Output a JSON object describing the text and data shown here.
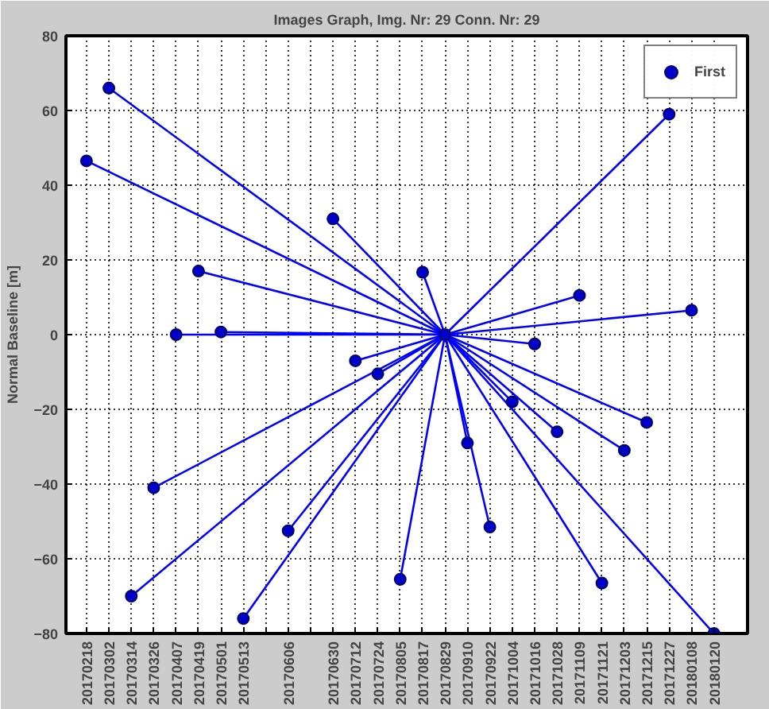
{
  "chart_data": {
    "type": "scatter",
    "title": "Images Graph, Img. Nr: 29 Conn. Nr: 29",
    "ylabel": "Normal Baseline [m]",
    "xlim": [
      "2017-02-07",
      "2018-02-07"
    ],
    "ylim": [
      -80,
      80
    ],
    "yticks": [
      -80,
      -60,
      -40,
      -20,
      0,
      20,
      40,
      60,
      80
    ],
    "xticks": [
      {
        "value": "2017-02-18",
        "label": "20170218"
      },
      {
        "value": "2017-03-02",
        "label": "20170302"
      },
      {
        "value": "2017-03-14",
        "label": "20170314"
      },
      {
        "value": "2017-03-26",
        "label": "20170326"
      },
      {
        "value": "2017-04-07",
        "label": "20170407"
      },
      {
        "value": "2017-04-19",
        "label": "20170419"
      },
      {
        "value": "2017-05-01",
        "label": "20170501"
      },
      {
        "value": "2017-05-13",
        "label": "20170513"
      },
      {
        "value": "2017-05-25",
        "label": null
      },
      {
        "value": "2017-06-06",
        "label": "20170606"
      },
      {
        "value": "2017-06-18",
        "label": null
      },
      {
        "value": "2017-06-30",
        "label": "20170630"
      },
      {
        "value": "2017-07-12",
        "label": "20170712"
      },
      {
        "value": "2017-07-24",
        "label": "20170724"
      },
      {
        "value": "2017-08-05",
        "label": "20170805"
      },
      {
        "value": "2017-08-17",
        "label": "20170817"
      },
      {
        "value": "2017-08-29",
        "label": "20170829"
      },
      {
        "value": "2017-09-10",
        "label": "20170910"
      },
      {
        "value": "2017-09-22",
        "label": "20170922"
      },
      {
        "value": "2017-10-04",
        "label": "20171004"
      },
      {
        "value": "2017-10-16",
        "label": "20171016"
      },
      {
        "value": "2017-10-28",
        "label": "20171028"
      },
      {
        "value": "2017-11-09",
        "label": "20171109"
      },
      {
        "value": "2017-11-21",
        "label": "20171121"
      },
      {
        "value": "2017-12-03",
        "label": "20171203"
      },
      {
        "value": "2017-12-15",
        "label": "20171215"
      },
      {
        "value": "2017-12-27",
        "label": "20171227"
      },
      {
        "value": "2018-01-08",
        "label": "20180108"
      },
      {
        "value": "2018-01-20",
        "label": "20180120"
      }
    ],
    "grid": true,
    "legend": "top right",
    "series": [
      {
        "type": "line",
        "color": "#0000ff",
        "x": [
          "2017-02-18",
          "2017-08-29"
        ],
        "values": [
          46.5,
          0
        ]
      },
      {
        "type": "line",
        "color": "#0000ff",
        "x": [
          "2017-03-02",
          "2017-08-29"
        ],
        "values": [
          66,
          0
        ]
      },
      {
        "type": "line",
        "color": "#0000ff",
        "x": [
          "2017-03-14",
          "2017-08-29"
        ],
        "values": [
          -70,
          0
        ]
      },
      {
        "type": "line",
        "color": "#0000ff",
        "x": [
          "2017-03-26",
          "2017-08-29"
        ],
        "values": [
          -41,
          0
        ]
      },
      {
        "type": "line",
        "color": "#0000ff",
        "x": [
          "2017-04-07",
          "2017-08-29"
        ],
        "values": [
          0,
          0
        ]
      },
      {
        "type": "line",
        "color": "#0000ff",
        "x": [
          "2017-04-19",
          "2017-08-29"
        ],
        "values": [
          17,
          0
        ]
      },
      {
        "type": "line",
        "color": "#0000ff",
        "x": [
          "2017-05-01",
          "2017-08-29"
        ],
        "values": [
          0.7,
          0
        ]
      },
      {
        "type": "line",
        "color": "#0000ff",
        "x": [
          "2017-05-13",
          "2017-08-29"
        ],
        "values": [
          -76,
          0
        ]
      },
      {
        "type": "line",
        "color": "#0000ff",
        "x": [
          "2017-06-06",
          "2017-08-29"
        ],
        "values": [
          -52.5,
          0
        ]
      },
      {
        "type": "line",
        "color": "#0000ff",
        "x": [
          "2017-06-30",
          "2017-08-29"
        ],
        "values": [
          31,
          0
        ]
      },
      {
        "type": "line",
        "color": "#0000ff",
        "x": [
          "2017-07-12",
          "2017-08-29"
        ],
        "values": [
          -7,
          0
        ]
      },
      {
        "type": "line",
        "color": "#0000ff",
        "x": [
          "2017-07-24",
          "2017-08-29"
        ],
        "values": [
          -10.5,
          0
        ]
      },
      {
        "type": "line",
        "color": "#0000ff",
        "x": [
          "2017-08-05",
          "2017-08-29"
        ],
        "values": [
          -65.5,
          0
        ]
      },
      {
        "type": "line",
        "color": "#0000ff",
        "x": [
          "2017-08-17",
          "2017-08-29"
        ],
        "values": [
          16.7,
          0
        ]
      },
      {
        "type": "line",
        "color": "#0000ff",
        "x": [
          "2017-09-10",
          "2017-08-29"
        ],
        "values": [
          -29,
          0
        ]
      },
      {
        "type": "line",
        "color": "#0000ff",
        "x": [
          "2017-09-22",
          "2017-08-29"
        ],
        "values": [
          -51.5,
          0
        ]
      },
      {
        "type": "line",
        "color": "#0000ff",
        "x": [
          "2017-10-04",
          "2017-08-29"
        ],
        "values": [
          -18,
          0
        ]
      },
      {
        "type": "line",
        "color": "#0000ff",
        "x": [
          "2017-10-16",
          "2017-08-29"
        ],
        "values": [
          -2.5,
          0
        ]
      },
      {
        "type": "line",
        "color": "#0000ff",
        "x": [
          "2017-10-28",
          "2017-08-29"
        ],
        "values": [
          -26,
          0
        ]
      },
      {
        "type": "line",
        "color": "#0000ff",
        "x": [
          "2017-11-09",
          "2017-08-29"
        ],
        "values": [
          10.5,
          0
        ]
      },
      {
        "type": "line",
        "color": "#0000ff",
        "x": [
          "2017-11-21",
          "2017-08-29"
        ],
        "values": [
          -66.5,
          0
        ]
      },
      {
        "type": "line",
        "color": "#0000ff",
        "x": [
          "2017-12-03",
          "2017-08-29"
        ],
        "values": [
          -31,
          0
        ]
      },
      {
        "type": "line",
        "color": "#0000ff",
        "x": [
          "2017-12-15",
          "2017-08-29"
        ],
        "values": [
          -23.5,
          0
        ]
      },
      {
        "type": "line",
        "color": "#0000ff",
        "x": [
          "2017-12-27",
          "2017-08-29"
        ],
        "values": [
          59,
          0
        ]
      },
      {
        "type": "line",
        "color": "#0000ff",
        "x": [
          "2018-01-08",
          "2017-08-29"
        ],
        "values": [
          6.5,
          0
        ]
      },
      {
        "type": "line",
        "color": "#0000ff",
        "x": [
          "2018-01-20",
          "2017-08-29"
        ],
        "values": [
          -80,
          0
        ]
      },
      {
        "marker": "circle",
        "name": "First",
        "color": "#0000cc",
        "x": [
          "2017-02-18",
          "2017-03-02",
          "2017-03-14",
          "2017-03-26",
          "2017-04-07",
          "2017-04-19",
          "2017-05-01",
          "2017-05-13",
          "2017-06-06",
          "2017-06-30",
          "2017-07-12",
          "2017-07-24",
          "2017-08-05",
          "2017-08-17",
          "2017-08-29",
          "2017-09-10",
          "2017-09-22",
          "2017-10-04",
          "2017-10-16",
          "2017-10-28",
          "2017-11-09",
          "2017-11-21",
          "2017-12-03",
          "2017-12-15",
          "2017-12-27",
          "2018-01-08",
          "2018-01-20"
        ],
        "values": [
          46.5,
          66,
          -70,
          -41,
          0,
          17,
          0.7,
          -76,
          -52.5,
          31,
          -7,
          -10.5,
          -65.5,
          16.7,
          0,
          -29,
          -51.5,
          -18,
          -2.5,
          -26,
          10.5,
          -66.5,
          -31,
          -23.5,
          59,
          6.5,
          -80
        ]
      }
    ]
  }
}
